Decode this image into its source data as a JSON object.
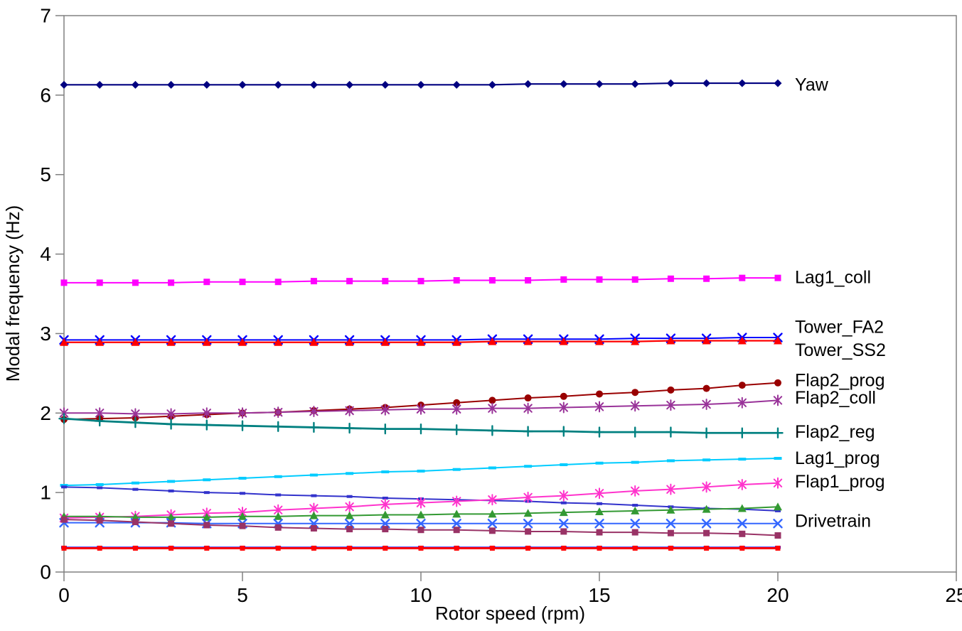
{
  "page": {
    "background": "#FFFFFF"
  },
  "chart_data": {
    "type": "line",
    "title": "",
    "xlabel": "Rotor speed (rpm)",
    "ylabel": "Modal frequency (Hz)",
    "xlim": [
      0,
      25
    ],
    "ylim": [
      0,
      7
    ],
    "x_ticks": [
      0,
      5,
      10,
      15,
      20,
      25
    ],
    "y_ticks": [
      0,
      1,
      2,
      3,
      4,
      5,
      6,
      7
    ],
    "grid": false,
    "legend_position": "labels-right-of-lines",
    "axis_color": "#808080",
    "x": [
      0,
      1,
      2,
      3,
      4,
      5,
      6,
      7,
      8,
      9,
      10,
      11,
      12,
      13,
      14,
      15,
      16,
      17,
      18,
      19,
      20
    ],
    "series": [
      {
        "name": "Yaw",
        "label_visible": true,
        "color": "#000080",
        "marker": "diamond",
        "lw": 2.2,
        "label_y_hz": 6.13,
        "values": [
          6.13,
          6.13,
          6.13,
          6.13,
          6.13,
          6.13,
          6.13,
          6.13,
          6.13,
          6.13,
          6.13,
          6.13,
          6.13,
          6.14,
          6.14,
          6.14,
          6.14,
          6.15,
          6.15,
          6.15,
          6.15
        ]
      },
      {
        "name": "Lag1_coll",
        "label_visible": true,
        "color": "#FF00FF",
        "marker": "square",
        "lw": 2,
        "label_y_hz": 3.705,
        "values": [
          3.64,
          3.64,
          3.64,
          3.64,
          3.65,
          3.65,
          3.65,
          3.66,
          3.66,
          3.66,
          3.66,
          3.67,
          3.67,
          3.67,
          3.68,
          3.68,
          3.68,
          3.69,
          3.69,
          3.7,
          3.7
        ]
      },
      {
        "name": "Tower_FA2",
        "label_visible": true,
        "color": "#0000FF",
        "marker": "x",
        "lw": 2,
        "label_y_hz": 3.08,
        "values": [
          2.92,
          2.92,
          2.92,
          2.92,
          2.92,
          2.92,
          2.92,
          2.92,
          2.92,
          2.92,
          2.92,
          2.92,
          2.93,
          2.93,
          2.93,
          2.93,
          2.94,
          2.94,
          2.94,
          2.95,
          2.95
        ]
      },
      {
        "name": "Tower_SS2",
        "label_visible": true,
        "color": "#FF0000",
        "marker": "triangle",
        "lw": 2.2,
        "label_y_hz": 2.79,
        "values": [
          2.89,
          2.89,
          2.89,
          2.89,
          2.89,
          2.89,
          2.89,
          2.89,
          2.89,
          2.89,
          2.89,
          2.89,
          2.9,
          2.9,
          2.9,
          2.9,
          2.9,
          2.91,
          2.91,
          2.91,
          2.91
        ]
      },
      {
        "name": "Flap2_prog",
        "label_visible": true,
        "color": "#990000",
        "marker": "circle",
        "lw": 2,
        "label_y_hz": 2.41,
        "values": [
          1.92,
          1.93,
          1.94,
          1.96,
          1.98,
          2.0,
          2.01,
          2.03,
          2.05,
          2.07,
          2.1,
          2.13,
          2.16,
          2.19,
          2.21,
          2.24,
          2.26,
          2.29,
          2.31,
          2.35,
          2.38
        ]
      },
      {
        "name": "Flap2_coll",
        "label_visible": true,
        "color": "#993399",
        "marker": "asterisk",
        "lw": 2,
        "label_y_hz": 2.19,
        "values": [
          2.0,
          2.0,
          1.99,
          1.99,
          2.0,
          2.0,
          2.01,
          2.02,
          2.03,
          2.04,
          2.05,
          2.05,
          2.06,
          2.06,
          2.07,
          2.08,
          2.09,
          2.1,
          2.11,
          2.13,
          2.16
        ]
      },
      {
        "name": "Flap2_reg",
        "label_visible": true,
        "color": "#008080",
        "marker": "plus",
        "lw": 2.8,
        "label_y_hz": 1.76,
        "values": [
          1.93,
          1.9,
          1.88,
          1.86,
          1.85,
          1.84,
          1.83,
          1.82,
          1.81,
          1.8,
          1.8,
          1.79,
          1.78,
          1.77,
          1.77,
          1.76,
          1.76,
          1.76,
          1.75,
          1.75,
          1.75
        ]
      },
      {
        "name": "Lag1_prog",
        "label_visible": true,
        "color": "#00CCFF",
        "marker": "dash",
        "lw": 2,
        "label_y_hz": 1.43,
        "values": [
          1.09,
          1.1,
          1.12,
          1.14,
          1.16,
          1.18,
          1.2,
          1.22,
          1.24,
          1.26,
          1.27,
          1.29,
          1.31,
          1.33,
          1.35,
          1.37,
          1.38,
          1.4,
          1.41,
          1.42,
          1.43
        ]
      },
      {
        "name": "unlabeled_blue_descending",
        "label_visible": false,
        "color": "#3333CC",
        "marker": "dash-small",
        "lw": 2,
        "values": [
          1.07,
          1.06,
          1.04,
          1.02,
          1.0,
          0.99,
          0.97,
          0.96,
          0.95,
          0.93,
          0.92,
          0.91,
          0.9,
          0.89,
          0.87,
          0.86,
          0.84,
          0.82,
          0.8,
          0.79,
          0.77
        ]
      },
      {
        "name": "Flap1_prog",
        "label_visible": true,
        "color": "#FF33CC",
        "marker": "asterisk",
        "lw": 2,
        "label_y_hz": 1.135,
        "values": [
          0.68,
          0.69,
          0.7,
          0.72,
          0.74,
          0.75,
          0.78,
          0.8,
          0.82,
          0.85,
          0.87,
          0.89,
          0.91,
          0.94,
          0.96,
          0.99,
          1.02,
          1.04,
          1.07,
          1.1,
          1.12
        ]
      },
      {
        "name": "unlabeled_green_rising",
        "label_visible": false,
        "color": "#339933",
        "marker": "triangle",
        "lw": 2,
        "values": [
          0.7,
          0.7,
          0.69,
          0.69,
          0.69,
          0.7,
          0.7,
          0.71,
          0.71,
          0.72,
          0.72,
          0.73,
          0.73,
          0.74,
          0.75,
          0.76,
          0.77,
          0.78,
          0.79,
          0.8,
          0.82
        ]
      },
      {
        "name": "Drivetrain",
        "label_visible": true,
        "color": "#3366FF",
        "marker": "x",
        "lw": 2,
        "label_y_hz": 0.64,
        "values": [
          0.62,
          0.62,
          0.62,
          0.62,
          0.61,
          0.61,
          0.61,
          0.61,
          0.61,
          0.61,
          0.61,
          0.61,
          0.61,
          0.61,
          0.61,
          0.61,
          0.61,
          0.61,
          0.61,
          0.61,
          0.61
        ]
      },
      {
        "name": "unlabeled_dark_purple_descending",
        "label_visible": false,
        "color": "#993366",
        "marker": "square",
        "lw": 2,
        "values": [
          0.66,
          0.65,
          0.63,
          0.61,
          0.59,
          0.58,
          0.56,
          0.55,
          0.54,
          0.54,
          0.53,
          0.53,
          0.52,
          0.51,
          0.51,
          0.5,
          0.5,
          0.49,
          0.49,
          0.48,
          0.46
        ]
      },
      {
        "name": "unlabeled_blue_flat_low",
        "label_visible": false,
        "color": "#0000FF",
        "marker": "dash-small",
        "lw": 2,
        "values": [
          0.31,
          0.31,
          0.31,
          0.31,
          0.31,
          0.31,
          0.31,
          0.31,
          0.31,
          0.31,
          0.31,
          0.31,
          0.31,
          0.31,
          0.31,
          0.31,
          0.31,
          0.31,
          0.31,
          0.31,
          0.31
        ]
      },
      {
        "name": "unlabeled_red_flat_low",
        "label_visible": false,
        "color": "#FF0000",
        "marker": "square-small",
        "lw": 3,
        "values": [
          0.3,
          0.3,
          0.3,
          0.3,
          0.3,
          0.3,
          0.3,
          0.3,
          0.3,
          0.3,
          0.3,
          0.3,
          0.3,
          0.3,
          0.3,
          0.3,
          0.3,
          0.3,
          0.3,
          0.3,
          0.3
        ]
      }
    ]
  }
}
